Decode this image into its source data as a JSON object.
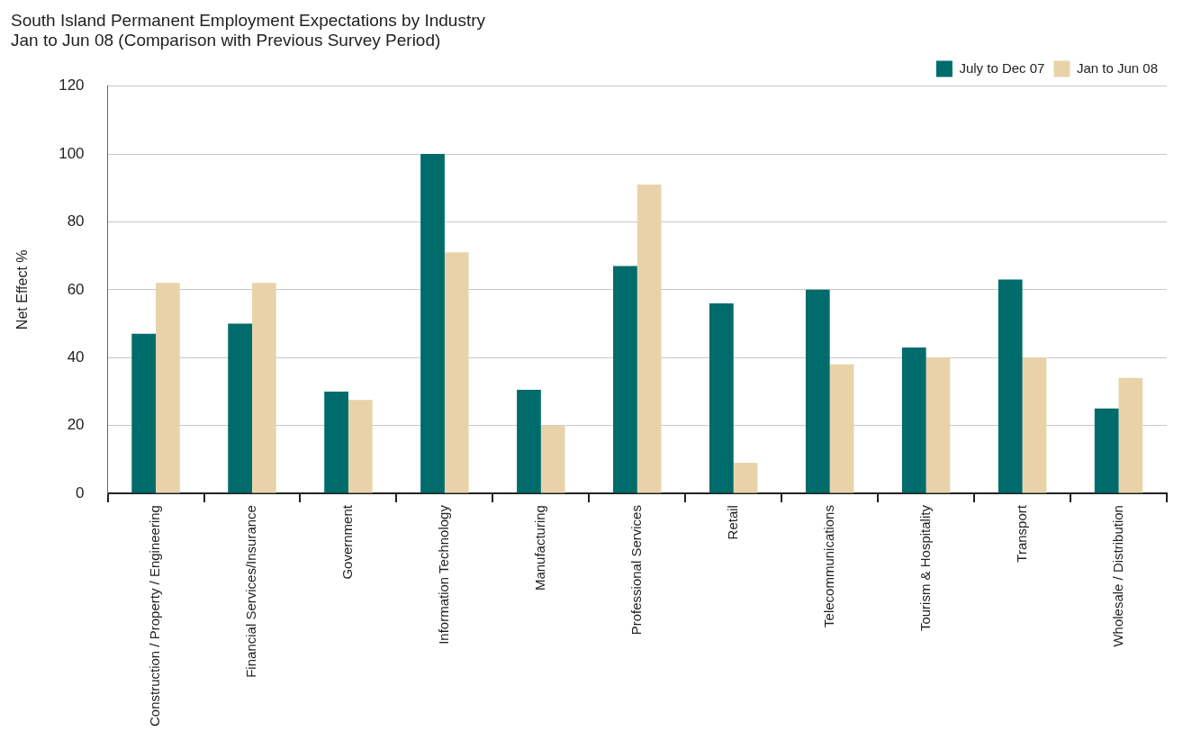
{
  "chart_data": {
    "type": "bar",
    "title": [
      "South Island Permanent Employment Expectations by Industry",
      "Jan to Jun 08 (Comparison with Previous Survey Period)"
    ],
    "ylabel": "Net Effect %",
    "categories": [
      "Construction / Property / Engineering",
      "Financial Services/Insurance",
      "Government",
      "Information Technology",
      "Manufacturing",
      "Professional Services",
      "Retail",
      "Telecommunications",
      "Tourism & Hospitality",
      "Transport",
      "Wholesale / Distribution"
    ],
    "series": [
      {
        "name": "July to Dec 07",
        "color": "#006b6b",
        "values": [
          47,
          50,
          30,
          100,
          30.5,
          67,
          56,
          60,
          43,
          63,
          25
        ]
      },
      {
        "name": "Jan to Jun 08",
        "color": "#e8d3a9",
        "values": [
          62,
          62,
          27.5,
          71,
          20,
          91,
          9,
          38,
          40,
          40,
          34
        ]
      }
    ],
    "ylim": [
      0,
      120
    ],
    "yticks": [
      0,
      20,
      40,
      60,
      80,
      100,
      120
    ],
    "grid": "y",
    "legend": "top right"
  }
}
